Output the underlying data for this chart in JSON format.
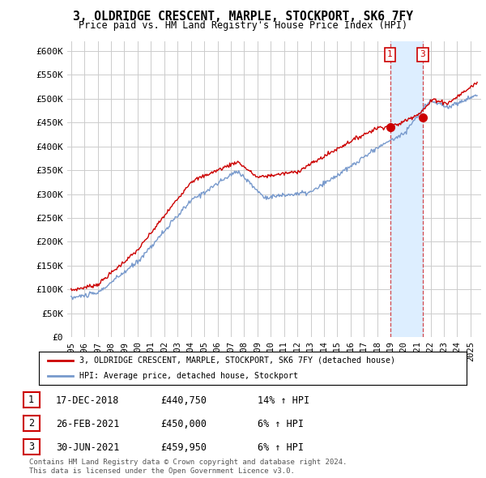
{
  "title": "3, OLDRIDGE CRESCENT, MARPLE, STOCKPORT, SK6 7FY",
  "subtitle": "Price paid vs. HM Land Registry's House Price Index (HPI)",
  "ylim": [
    0,
    620000
  ],
  "yticks": [
    0,
    50000,
    100000,
    150000,
    200000,
    250000,
    300000,
    350000,
    400000,
    450000,
    500000,
    550000,
    600000
  ],
  "ytick_labels": [
    "£0",
    "£50K",
    "£100K",
    "£150K",
    "£200K",
    "£250K",
    "£300K",
    "£350K",
    "£400K",
    "£450K",
    "£500K",
    "£550K",
    "£600K"
  ],
  "line1_color": "#cc0000",
  "line2_color": "#7799cc",
  "shade_color": "#ddeeff",
  "sale_points": [
    {
      "year": 2018.96,
      "price": 440750,
      "label": "1"
    },
    {
      "year": 2021.42,
      "price": 459950,
      "label": "3"
    }
  ],
  "legend_line1": "3, OLDRIDGE CRESCENT, MARPLE, STOCKPORT, SK6 7FY (detached house)",
  "legend_line2": "HPI: Average price, detached house, Stockport",
  "table_rows": [
    {
      "num": "1",
      "date": "17-DEC-2018",
      "price": "£440,750",
      "change": "14% ↑ HPI"
    },
    {
      "num": "2",
      "date": "26-FEB-2021",
      "price": "£450,000",
      "change": "6% ↑ HPI"
    },
    {
      "num": "3",
      "date": "30-JUN-2021",
      "price": "£459,950",
      "change": "6% ↑ HPI"
    }
  ],
  "footnote": "Contains HM Land Registry data © Crown copyright and database right 2024.\nThis data is licensed under the Open Government Licence v3.0.",
  "background_color": "#ffffff",
  "grid_color": "#cccccc",
  "xlim_left": 1994.7,
  "xlim_right": 2025.8,
  "x_ticks_start": 1995,
  "x_ticks_end": 2026
}
